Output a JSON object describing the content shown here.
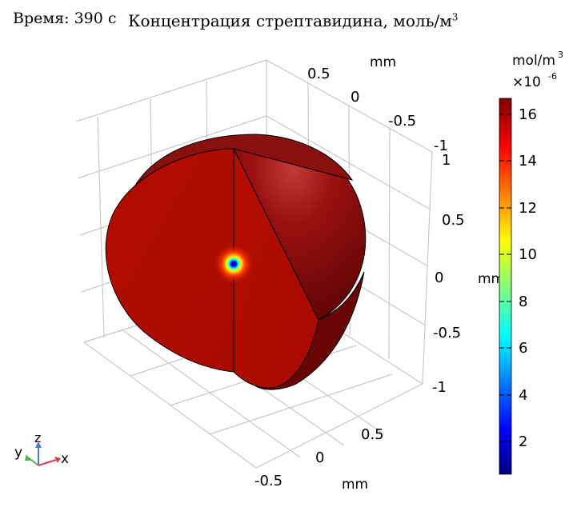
{
  "header": {
    "time_label": "Время: 390 с",
    "title": "Концентрация стрептавидина, моль/м",
    "title_sup": "3"
  },
  "axes": {
    "top_axis_unit": "mm",
    "top_axis_ticks": [
      "0.5",
      "0",
      "-0.5",
      "-1"
    ],
    "right_axis_unit": "mm",
    "right_axis_ticks": [
      "1",
      "0.5",
      "0",
      "-0.5",
      "-1"
    ],
    "bottom_axis_unit": "mm",
    "bottom_axis_ticks": [
      "-0.5",
      "0",
      "0.5"
    ]
  },
  "colorbar": {
    "unit": "mol/m",
    "unit_sup": "3",
    "scale": "×10",
    "scale_sup": "-6",
    "ticks": [
      "16",
      "14",
      "12",
      "10",
      "8",
      "6",
      "4",
      "2"
    ],
    "range": [
      0.5,
      16.6
    ],
    "colormap": [
      "#00007f",
      "#0000ff",
      "#00ffff",
      "#ffff00",
      "#ff0000",
      "#7f0000"
    ]
  },
  "triad": {
    "x_label": "x",
    "y_label": "y",
    "z_label": "z",
    "x_color": "#d43a5a",
    "y_color": "#4caf50",
    "z_color": "#4a78c8"
  },
  "chart_data": {
    "type": "heatmap",
    "title": "Концентрация стрептавидина, моль/м³",
    "subtitle": "Время: 390 с",
    "geometry": "sphere with quarter cut-away, cross-section shown",
    "xlim": [
      -0.5,
      0.5
    ],
    "ylim": [
      -1,
      0.5
    ],
    "zlim": [
      -1,
      1
    ],
    "color_range": [
      5e-07,
      1.66e-05
    ],
    "bulk_value": 1.66e-05,
    "center_minimum": 5e-07,
    "grid": true,
    "legend_position": "right"
  }
}
